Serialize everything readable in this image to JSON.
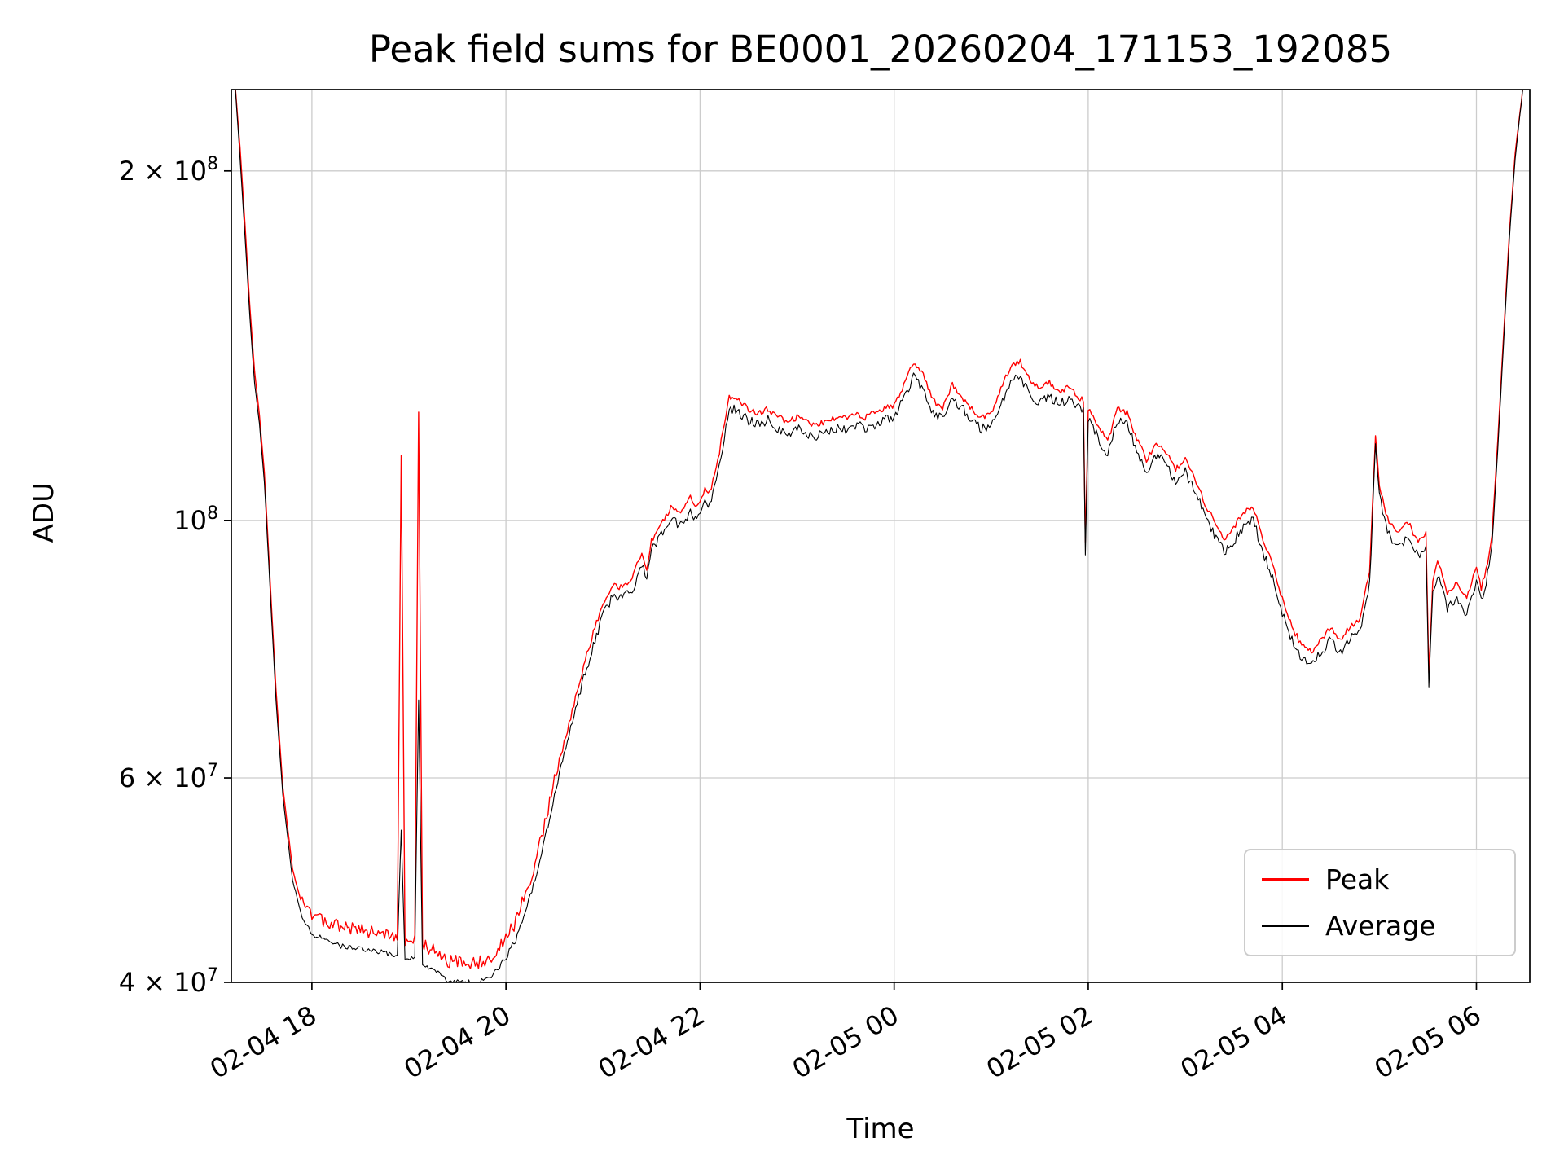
{
  "chart_data": {
    "type": "line",
    "title": "Peak field sums for BE0001_20260204_171153_192085",
    "xlabel": "Time",
    "ylabel": "ADU",
    "yscale": "log",
    "grid": true,
    "legend_position": "lower right",
    "x_unit": "hours since 02-04 00:00",
    "xlim": [
      17.17,
      30.55
    ],
    "ylim": [
      40000000.0,
      235000000.0
    ],
    "colors": {
      "grid": "#cccccc",
      "axis": "#000000",
      "text": "#000000"
    },
    "x_ticks": [
      {
        "value": 18,
        "label": "02-04 18"
      },
      {
        "value": 20,
        "label": "02-04 20"
      },
      {
        "value": 22,
        "label": "02-04 22"
      },
      {
        "value": 24,
        "label": "02-05 00"
      },
      {
        "value": 26,
        "label": "02-05 02"
      },
      {
        "value": 28,
        "label": "02-05 04"
      },
      {
        "value": 30,
        "label": "02-05 06"
      }
    ],
    "y_ticks": [
      {
        "value": 200000000.0,
        "base": "2 × 10",
        "exp": "8"
      },
      {
        "value": 100000000.0,
        "base": "10",
        "exp": "8"
      },
      {
        "value": 60000000.0,
        "base": "6 × 10",
        "exp": "7"
      },
      {
        "value": 40000000.0,
        "base": "4 × 10",
        "exp": "7"
      }
    ],
    "x": [
      17.21,
      17.26,
      17.31,
      17.36,
      17.41,
      17.46,
      17.51,
      17.57,
      17.63,
      17.7,
      17.8,
      17.9,
      18.0,
      18.15,
      18.3,
      18.5,
      18.7,
      18.88,
      18.92,
      18.96,
      19.06,
      19.1,
      19.14,
      19.25,
      19.4,
      19.55,
      19.7,
      19.85,
      20.0,
      20.1,
      20.2,
      20.3,
      20.4,
      20.5,
      20.6,
      20.7,
      20.8,
      20.9,
      21.0,
      21.1,
      21.2,
      21.3,
      21.4,
      21.45,
      21.5,
      21.6,
      21.7,
      21.8,
      21.9,
      21.95,
      22.0,
      22.05,
      22.1,
      22.2,
      22.3,
      22.4,
      22.5,
      22.6,
      22.7,
      22.8,
      22.9,
      23.0,
      23.1,
      23.2,
      23.3,
      23.4,
      23.5,
      23.6,
      23.7,
      23.8,
      23.9,
      24.0,
      24.1,
      24.2,
      24.3,
      24.4,
      24.5,
      24.6,
      24.7,
      24.8,
      24.9,
      25.0,
      25.1,
      25.2,
      25.3,
      25.4,
      25.5,
      25.6,
      25.7,
      25.8,
      25.9,
      25.95,
      25.97,
      26.0,
      26.1,
      26.2,
      26.3,
      26.4,
      26.5,
      26.6,
      26.7,
      26.8,
      26.9,
      27.0,
      27.1,
      27.2,
      27.3,
      27.4,
      27.5,
      27.6,
      27.7,
      27.8,
      27.9,
      28.0,
      28.1,
      28.2,
      28.3,
      28.4,
      28.5,
      28.6,
      28.7,
      28.8,
      28.9,
      28.96,
      29.0,
      29.05,
      29.1,
      29.2,
      29.3,
      29.4,
      29.48,
      29.51,
      29.55,
      29.6,
      29.7,
      29.8,
      29.9,
      30.0,
      30.05,
      30.1,
      30.16,
      30.22,
      30.28,
      30.34,
      30.4,
      30.48
    ],
    "series": [
      {
        "name": "Peak",
        "color": "#ff0000",
        "values": [
          236000000.0,
          209000000.0,
          180000000.0,
          153000000.0,
          134000000.0,
          123000000.0,
          110000000.0,
          88500000.0,
          71500000.0,
          59000000.0,
          50000000.0,
          46500000.0,
          45000000.0,
          44500000.0,
          44000000.0,
          43800000.0,
          43500000.0,
          43200000.0,
          113000000.0,
          43000000.0,
          43000000.0,
          122000000.0,
          42500000.0,
          42000000.0,
          41200000.0,
          41000000.0,
          41000000.0,
          41500000.0,
          43000000.0,
          44500000.0,
          47000000.0,
          50000000.0,
          54000000.0,
          59000000.0,
          64000000.0,
          69000000.0,
          74500000.0,
          79500000.0,
          84500000.0,
          87500000.0,
          87000000.0,
          88500000.0,
          93500000.0,
          90500000.0,
          95500000.0,
          98500000.0,
          102000000.0,
          101000000.0,
          104000000.0,
          102000000.0,
          103000000.0,
          106000000.0,
          105000000.0,
          114000000.0,
          127000000.0,
          126000000.0,
          124000000.0,
          123000000.0,
          124000000.0,
          122000000.0,
          121000000.0,
          122000000.0,
          121000000.0,
          120000000.0,
          121000000.0,
          122000000.0,
          122000000.0,
          123000000.0,
          122000000.0,
          123000000.0,
          124000000.0,
          125000000.0,
          130000000.0,
          136000000.0,
          133000000.0,
          126000000.0,
          124000000.0,
          130000000.0,
          127000000.0,
          124000000.0,
          122000000.0,
          123000000.0,
          129000000.0,
          135000000.0,
          136000000.0,
          131000000.0,
          129000000.0,
          131000000.0,
          128000000.0,
          130000000.0,
          127000000.0,
          126000000.0,
          95000000.0,
          124000000.0,
          120000000.0,
          116000000.0,
          124000000.0,
          123000000.0,
          117000000.0,
          112000000.0,
          116000000.0,
          114000000.0,
          110000000.0,
          112000000.0,
          108000000.0,
          103000000.0,
          99000000.0,
          96000000.0,
          98000000.0,
          101000000.0,
          102000000.0,
          96000000.0,
          91000000.0,
          85000000.0,
          80500000.0,
          77500000.0,
          76500000.0,
          78500000.0,
          80500000.0,
          78500000.0,
          80500000.0,
          81500000.0,
          90000000.0,
          118000000.0,
          107000000.0,
          102000000.0,
          99000000.0,
          97000000.0,
          99000000.0,
          95000000.0,
          97000000.0,
          73500000.0,
          88000000.0,
          92000000.0,
          86000000.0,
          88000000.0,
          85000000.0,
          91000000.0,
          87000000.0,
          90000000.0,
          97000000.0,
          117000000.0,
          144000000.0,
          177000000.0,
          207000000.0,
          236000000.0
        ]
      },
      {
        "name": "Average",
        "color": "#000000",
        "values": [
          236000000.0,
          205000000.0,
          176000000.0,
          150000000.0,
          131000000.0,
          121000000.0,
          108000000.0,
          87000000.0,
          70000000.0,
          58000000.0,
          49000000.0,
          45500000.0,
          44000000.0,
          43500000.0,
          43000000.0,
          42800000.0,
          42500000.0,
          42200000.0,
          54000000.0,
          42000000.0,
          42000000.0,
          70000000.0,
          41500000.0,
          41000000.0,
          40200000.0,
          40000000.0,
          40000000.0,
          40500000.0,
          42000000.0,
          43500000.0,
          46000000.0,
          49000000.0,
          53000000.0,
          58000000.0,
          63000000.0,
          68000000.0,
          73000000.0,
          78000000.0,
          83000000.0,
          86000000.0,
          85500000.0,
          87000000.0,
          92000000.0,
          89000000.0,
          94000000.0,
          97000000.0,
          100000000.0,
          99000000.0,
          102000000.0,
          100000000.0,
          101000000.0,
          104000000.0,
          103000000.0,
          112000000.0,
          125000000.0,
          124000000.0,
          122000000.0,
          121000000.0,
          122000000.0,
          120000000.0,
          119000000.0,
          120000000.0,
          118500000.0,
          118000000.0,
          119000000.0,
          120000000.0,
          119500000.0,
          121000000.0,
          120000000.0,
          121000000.0,
          122000000.0,
          123000000.0,
          127000000.0,
          133000000.0,
          130000000.0,
          124000000.0,
          122000000.0,
          127000000.0,
          125000000.0,
          122000000.0,
          120000000.0,
          121000000.0,
          126000000.0,
          132000000.0,
          133000000.0,
          128000000.0,
          126000000.0,
          128000000.0,
          126000000.0,
          127000000.0,
          125000000.0,
          124000000.0,
          93000000.0,
          122000000.0,
          118000000.0,
          114000000.0,
          122000000.0,
          121000000.0,
          115000000.0,
          110000000.0,
          114000000.0,
          112000000.0,
          108000000.0,
          110000000.0,
          106000000.0,
          101000000.0,
          97000000.0,
          94000000.0,
          96000000.0,
          99000000.0,
          100000000.0,
          94000000.0,
          89000000.0,
          83000000.0,
          79000000.0,
          76000000.0,
          75000000.0,
          77000000.0,
          79000000.0,
          77000000.0,
          79000000.0,
          80000000.0,
          88000000.0,
          116000000.0,
          105000000.0,
          100000000.0,
          97000000.0,
          95000000.0,
          97000000.0,
          93000000.0,
          95000000.0,
          72000000.0,
          86000000.0,
          90000000.0,
          84000000.0,
          86000000.0,
          83000000.0,
          89000000.0,
          85000000.0,
          88000000.0,
          95000000.0,
          115000000.0,
          142000000.0,
          175000000.0,
          205000000.0,
          236000000.0
        ]
      }
    ]
  }
}
